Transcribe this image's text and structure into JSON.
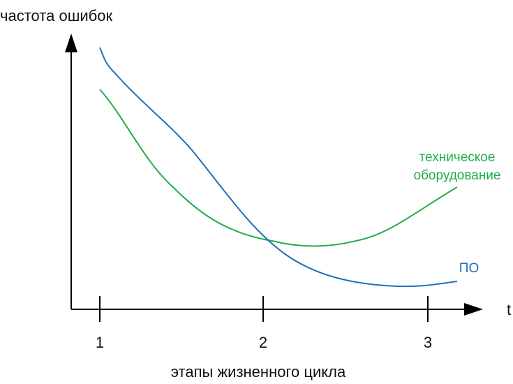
{
  "y_axis_label": "частота ошибок",
  "x_axis_symbol": "t",
  "x_axis_label": "этапы жизненного цикла",
  "stages": [
    "1",
    "2",
    "3"
  ],
  "curves": [
    {
      "label_lines": [
        "техническое",
        "оборудование"
      ],
      "color": "#1fae4a"
    },
    {
      "label_lines": [
        "ПО"
      ],
      "color": "#1f6fba"
    }
  ]
}
